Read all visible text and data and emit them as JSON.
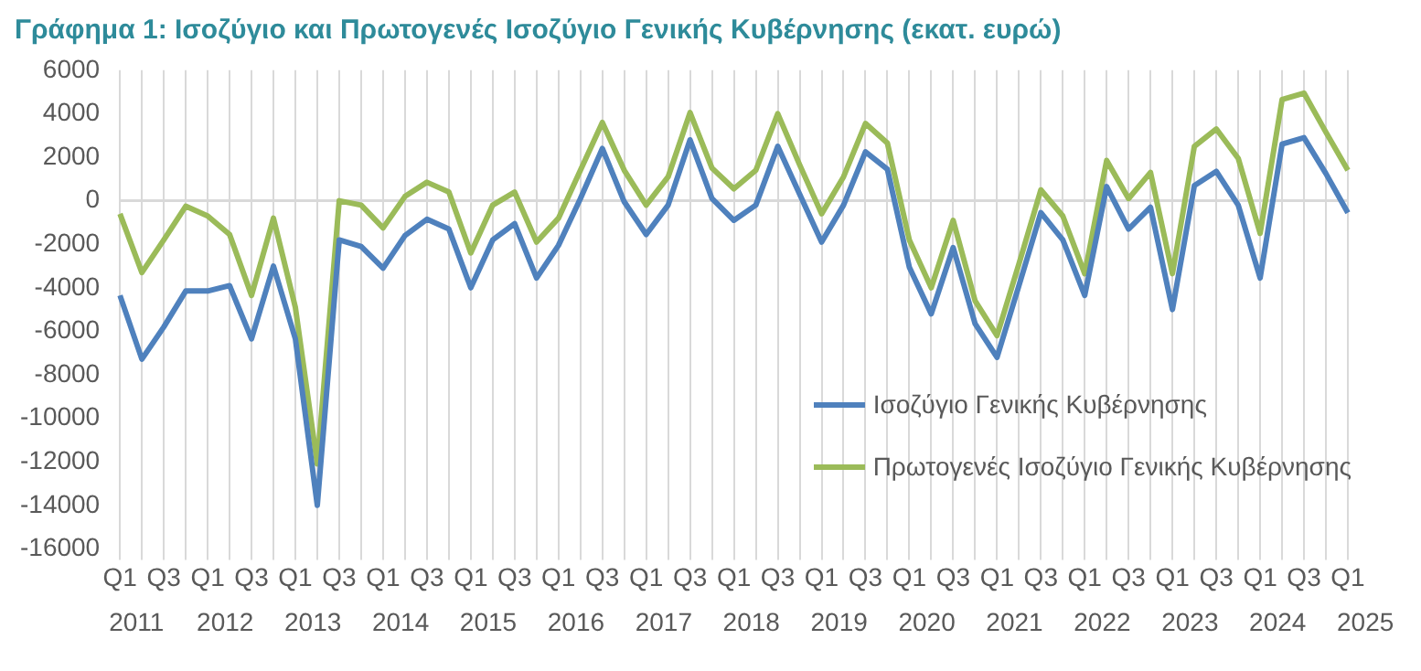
{
  "chart_data": {
    "type": "line",
    "title": "Γράφημα 1: Ισοζύγιο και Πρωτογενές Ισοζύγιο Γενικής Κυβέρνησης (εκατ. ευρώ)",
    "categories": [
      "Q1",
      null,
      "Q3",
      null,
      "Q1",
      null,
      "Q3",
      null,
      "Q1",
      null,
      "Q3",
      null,
      "Q1",
      null,
      "Q3",
      null,
      "Q1",
      null,
      "Q3",
      null,
      "Q1",
      null,
      "Q3",
      null,
      "Q1",
      null,
      "Q3",
      null,
      "Q1",
      null,
      "Q3",
      null,
      "Q1",
      null,
      "Q3",
      null,
      "Q1",
      null,
      "Q3",
      null,
      "Q1",
      null,
      "Q3",
      null,
      "Q1",
      null,
      "Q3",
      null,
      "Q1",
      null,
      "Q3",
      null,
      "Q1",
      null,
      "Q3",
      null,
      "Q1"
    ],
    "series": [
      {
        "name": "Ισοζύγιο Γενικής Κυβέρνησης",
        "color": "#4f81bd",
        "values": [
          -4350,
          -7280,
          -5800,
          -4150,
          -4150,
          -3900,
          -6350,
          -3000,
          -6350,
          -14000,
          -1800,
          -2100,
          -3100,
          -1600,
          -850,
          -1300,
          -4000,
          -1800,
          -1050,
          -3550,
          -2050,
          100,
          2400,
          -50,
          -1550,
          -200,
          2800,
          100,
          -900,
          -200,
          2500,
          300,
          -1900,
          -200,
          2250,
          1450,
          -3050,
          -5200,
          -2150,
          -5650,
          -7200,
          -3900,
          -550,
          -1800,
          -4350,
          650,
          -1300,
          -300,
          -5000,
          700,
          1350,
          -200,
          -3550,
          2600,
          2900,
          1250,
          -550
        ]
      },
      {
        "name": "Πρωτογενές Ισοζύγιο Γενικής Κυβέρνησης",
        "color": "#9bbb59",
        "values": [
          -600,
          -3300,
          -1800,
          -250,
          -700,
          -1550,
          -4350,
          -800,
          -4900,
          -12100,
          0,
          -200,
          -1250,
          200,
          850,
          400,
          -2400,
          -200,
          400,
          -1900,
          -800,
          1400,
          3600,
          1400,
          -200,
          1100,
          4050,
          1500,
          550,
          1400,
          4000,
          1650,
          -600,
          1100,
          3550,
          2650,
          -1800,
          -4000,
          -900,
          -4600,
          -6200,
          -2900,
          500,
          -700,
          -3350,
          1850,
          100,
          1300,
          -3350,
          2500,
          3300,
          1950,
          -1500,
          4650,
          4950,
          3150,
          1400
        ]
      }
    ],
    "annotations": [
      "2011",
      "2012",
      "2013",
      "2014",
      "2015",
      "2016",
      "2017",
      "2018",
      "2019",
      "2020",
      "2021",
      "2022",
      "2023",
      "2024",
      "2025"
    ],
    "ylim": [
      -16000,
      6000
    ],
    "yticks": [
      -16000,
      -14000,
      -12000,
      -10000,
      -8000,
      -6000,
      -4000,
      -2000,
      0,
      2000,
      4000,
      6000
    ],
    "ref_lines": [
      {
        "axis": "y",
        "value": 0,
        "color": "#d9d9d9"
      }
    ],
    "grid": "x",
    "legend": "bottom right",
    "marker": "none",
    "line_style": "solid"
  }
}
